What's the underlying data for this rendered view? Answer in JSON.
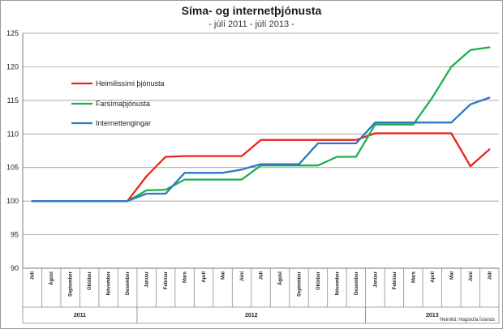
{
  "chart_data": {
    "type": "line",
    "title": "Síma- og internetþjónusta",
    "subtitle": "- júlí 2011 - júlí 2013 -",
    "source": "Heimild: Hagstofa Íslands",
    "ylim": [
      90,
      125
    ],
    "yticks": [
      90,
      95,
      100,
      105,
      110,
      115,
      120,
      125
    ],
    "grid": true,
    "legend_position": "upper-left",
    "categories": [
      "Júlí",
      "Ágúst",
      "September",
      "Október",
      "Nóvember",
      "Desember",
      "Janúar",
      "Febrúar",
      "Mars",
      "Apríl",
      "Maí",
      "Júní",
      "Júlí",
      "Ágúst",
      "September",
      "Október",
      "Nóvember",
      "Desember",
      "Janúar",
      "Febrúar",
      "Mars",
      "Apríl",
      "Maí",
      "Júní",
      "Júlí"
    ],
    "years": [
      {
        "label": "2011",
        "start": 0,
        "end": 5
      },
      {
        "label": "2012",
        "start": 6,
        "end": 17
      },
      {
        "label": "2013",
        "start": 18,
        "end": 24
      }
    ],
    "series": [
      {
        "name": "Heimilissími þjónusta",
        "color": "#e8231b",
        "values": [
          100,
          100,
          100,
          100,
          100,
          100,
          103.7,
          106.6,
          106.7,
          106.7,
          106.7,
          106.7,
          109.1,
          109.1,
          109.1,
          109.1,
          109.1,
          109.1,
          110.1,
          110.1,
          110.1,
          110.1,
          110.1,
          105.2,
          107.7
        ]
      },
      {
        "name": "Farsímaþjónusta",
        "color": "#1eb050",
        "values": [
          100,
          100,
          100,
          100,
          100,
          100,
          101.6,
          101.7,
          103.2,
          103.2,
          103.2,
          103.2,
          105.3,
          105.3,
          105.3,
          105.3,
          106.6,
          106.6,
          111.4,
          111.4,
          111.4,
          115.4,
          120,
          122.5,
          122.9
        ]
      },
      {
        "name": "Internettengingar",
        "color": "#2a78c2",
        "values": [
          100,
          100,
          100,
          100,
          100,
          100,
          101.1,
          101.1,
          104.2,
          104.2,
          104.2,
          104.7,
          105.5,
          105.5,
          105.5,
          108.6,
          108.6,
          108.6,
          111.7,
          111.7,
          111.7,
          111.7,
          111.7,
          114.4,
          115.4
        ]
      }
    ]
  }
}
